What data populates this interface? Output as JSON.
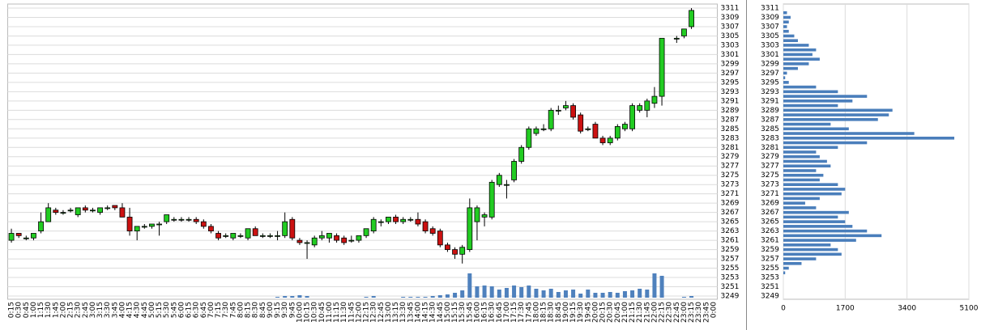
{
  "chart_data": [
    {
      "type": "candlestick",
      "categories": [
        "0:15",
        "0:30",
        "0:45",
        "1:00",
        "1:15",
        "1:30",
        "1:45",
        "2:00",
        "2:15",
        "2:30",
        "2:45",
        "3:00",
        "3:15",
        "3:30",
        "3:45",
        "4:00",
        "4:15",
        "4:30",
        "4:45",
        "5:00",
        "5:15",
        "5:30",
        "5:45",
        "6:00",
        "6:15",
        "6:30",
        "6:45",
        "7:00",
        "7:15",
        "7:30",
        "7:45",
        "8:00",
        "8:15",
        "8:30",
        "8:45",
        "9:00",
        "9:15",
        "9:30",
        "9:45",
        "10:00",
        "10:15",
        "10:30",
        "10:45",
        "11:00",
        "11:15",
        "11:30",
        "11:45",
        "12:00",
        "12:15",
        "12:30",
        "12:45",
        "13:00",
        "13:15",
        "13:30",
        "13:45",
        "14:00",
        "14:15",
        "14:30",
        "14:45",
        "15:00",
        "15:15",
        "15:30",
        "15:45",
        "16:00",
        "16:15",
        "16:30",
        "16:45",
        "17:00",
        "17:15",
        "17:30",
        "17:45",
        "18:00",
        "18:15",
        "18:30",
        "18:45",
        "19:00",
        "19:15",
        "19:30",
        "19:45",
        "20:00",
        "20:15",
        "20:30",
        "20:45",
        "21:00",
        "21:15",
        "21:30",
        "21:45",
        "22:00",
        "22:15",
        "22:30",
        "22:45",
        "23:00",
        "23:15",
        "23:30",
        "23:45",
        "0:00"
      ],
      "open": [
        3261,
        3262.5,
        3261.5,
        3261.5,
        3263,
        3265,
        3267.5,
        3267,
        3267.5,
        3266.5,
        3268,
        3267.5,
        3267,
        3268,
        3268.5,
        3268,
        3266,
        3263,
        3264,
        3264,
        3264.5,
        3265,
        3265.5,
        3265.5,
        3265.5,
        3265.5,
        3265,
        3264,
        3262.5,
        3262,
        3261.5,
        3262,
        3261.5,
        3263.5,
        3262,
        3262,
        3262,
        3262,
        3265.5,
        3261,
        3260.5,
        3260,
        3261.5,
        3261.5,
        3262,
        3261.5,
        3261,
        3261,
        3262,
        3263,
        3265,
        3265,
        3266,
        3265,
        3265.5,
        3265.5,
        3265,
        3263.5,
        3263,
        3260,
        3259,
        3258,
        3259,
        3265,
        3266,
        3266,
        3273,
        3273,
        3274,
        3278,
        3281,
        3284,
        3285,
        3285,
        3289,
        3289.5,
        3290,
        3288,
        3285,
        3286,
        3283,
        3282,
        3283,
        3285,
        3285,
        3289,
        3289,
        3290.5,
        3292,
        null,
        3304.5,
        3305,
        3307,
        null,
        null,
        null
      ],
      "high": [
        3263.5,
        3262.5,
        3262,
        3262.5,
        3267,
        3269,
        3268,
        3267.5,
        3268,
        3268,
        3268.5,
        3268,
        3268,
        3268.5,
        3268.5,
        3269,
        3268,
        3264,
        3264.5,
        3264.5,
        3265,
        3266.5,
        3266,
        3266,
        3266,
        3266,
        3265.5,
        3264.5,
        3263,
        3262.5,
        3262.5,
        3262.5,
        3263.5,
        3264,
        3262.5,
        3262.5,
        3263,
        3267,
        3266,
        3261.5,
        3261,
        3262,
        3263,
        3262.5,
        3262.5,
        3262,
        3262,
        3262,
        3263.5,
        3266,
        3265.5,
        3266,
        3266.5,
        3266,
        3266,
        3267,
        3265.5,
        3264,
        3263.5,
        3260.5,
        3259.5,
        3260,
        3270,
        3268.5,
        3267,
        3274,
        3275.5,
        3274,
        3278.5,
        3281.5,
        3285.5,
        3285.5,
        3286,
        3289.5,
        3290,
        3291,
        3290.5,
        3288.5,
        3285.5,
        3286.5,
        3283.5,
        3283.5,
        3286,
        3286.5,
        3290.5,
        3290.5,
        3291.5,
        3294,
        3304.5,
        null,
        3305,
        3306.5,
        3311,
        null,
        null,
        null
      ],
      "low": [
        3260.5,
        3261.5,
        3261,
        3261,
        3262.5,
        3265,
        3266.5,
        3266.5,
        3267,
        3266,
        3267,
        3267,
        3266.5,
        3267.5,
        3267.5,
        3266,
        3262,
        3261,
        3263.5,
        3263.5,
        3262,
        3264.5,
        3265,
        3265,
        3265,
        3264.5,
        3263.5,
        3262.5,
        3261,
        3261.5,
        3261,
        3261.5,
        3261,
        3262,
        3261.5,
        3261.5,
        3261,
        3261.5,
        3261,
        3260,
        3257,
        3259.5,
        3261,
        3260.5,
        3260.5,
        3260,
        3260.5,
        3260.5,
        3261.5,
        3262.5,
        3264,
        3264.5,
        3264.5,
        3264.5,
        3265,
        3264,
        3262.5,
        3262,
        3259.5,
        3258.5,
        3257,
        3256,
        3258.5,
        3261,
        3264,
        3265.5,
        3272.5,
        3270,
        3273.5,
        3277.5,
        3280.5,
        3283.5,
        3284.5,
        3284.5,
        3288,
        3289,
        3287,
        3284,
        3284.5,
        3283,
        3281.5,
        3281.5,
        3282.5,
        3284.5,
        3284.5,
        3288.5,
        3287.5,
        3289.5,
        3290,
        null,
        3303.5,
        3304.5,
        3306.5,
        null,
        null,
        null
      ],
      "close": [
        3262.5,
        3262,
        3261.5,
        3262.5,
        3265,
        3268,
        3267,
        3267,
        3267.5,
        3268,
        3267.5,
        3267.5,
        3268,
        3268,
        3268,
        3266,
        3263,
        3264,
        3264,
        3264.5,
        3264.5,
        3266.5,
        3265.5,
        3265.5,
        3265.5,
        3265,
        3264,
        3263,
        3261.5,
        3262,
        3262.5,
        3262,
        3263.5,
        3262,
        3262,
        3262,
        3262,
        3265,
        3261.5,
        3260.5,
        3260.5,
        3261.5,
        3262,
        3262.5,
        3261,
        3260.5,
        3261,
        3262,
        3263.5,
        3265.5,
        3265,
        3266,
        3265,
        3265.5,
        3265.5,
        3264.5,
        3263,
        3262.5,
        3260,
        3259,
        3258,
        3259.5,
        3268,
        3268,
        3266.5,
        3273.5,
        3275,
        3273,
        3278,
        3281,
        3285,
        3285,
        3285,
        3289,
        3289,
        3290,
        3287.5,
        3284.5,
        3285,
        3283,
        3282,
        3283,
        3285.5,
        3286,
        3290,
        3290,
        3291,
        3292,
        3304.5,
        null,
        3304.5,
        3306.5,
        3310.5,
        null,
        null,
        null
      ],
      "volume": [
        0,
        0,
        0,
        0,
        0,
        0,
        0,
        0,
        0,
        0,
        0,
        0,
        0,
        0,
        0,
        0,
        0,
        0,
        0,
        0,
        0,
        0,
        0,
        0,
        0,
        0,
        0,
        0,
        0,
        0,
        0,
        0,
        0,
        0,
        0,
        0,
        1,
        2,
        2,
        3,
        2,
        0,
        0,
        0,
        0,
        0,
        0,
        0,
        1,
        2,
        0,
        0,
        0,
        1,
        1,
        1,
        1,
        2,
        3,
        4,
        6,
        9,
        30,
        14,
        15,
        14,
        10,
        12,
        15,
        13,
        15,
        11,
        9,
        11,
        7,
        9,
        10,
        5,
        10,
        6,
        6,
        7,
        6,
        8,
        9,
        11,
        10,
        30,
        27,
        null,
        0,
        1,
        2,
        null,
        null,
        null
      ],
      "up_color": "#22cc22",
      "down_color": "#cc1111",
      "volume_color": "#4f81bd",
      "ylim": [
        3249,
        3311
      ],
      "yticks": [
        3249,
        3251,
        3253,
        3255,
        3257,
        3259,
        3261,
        3263,
        3265,
        3267,
        3269,
        3271,
        3273,
        3275,
        3277,
        3279,
        3281,
        3283,
        3285,
        3287,
        3289,
        3291,
        3293,
        3295,
        3297,
        3299,
        3301,
        3303,
        3305,
        3307,
        3309,
        3311
      ],
      "grid": true
    },
    {
      "type": "barh",
      "y": [
        3310,
        3309,
        3308,
        3307,
        3306,
        3305,
        3304,
        3303,
        3302,
        3301,
        3300,
        3299,
        3298,
        3297,
        3296,
        3295,
        3294,
        3293,
        3292,
        3291,
        3290,
        3289,
        3288,
        3287,
        3286,
        3285,
        3284,
        3283,
        3282,
        3281,
        3280,
        3279,
        3278,
        3277,
        3276,
        3275,
        3274,
        3273,
        3272,
        3271,
        3270,
        3269,
        3268,
        3267,
        3266,
        3265,
        3264,
        3263,
        3262,
        3261,
        3260,
        3259,
        3258,
        3257,
        3256,
        3255,
        3254
      ],
      "values": [
        100,
        200,
        150,
        100,
        150,
        300,
        400,
        700,
        900,
        800,
        1000,
        700,
        400,
        100,
        50,
        150,
        900,
        1500,
        2300,
        1900,
        1500,
        3000,
        2900,
        2600,
        1300,
        1800,
        3600,
        4700,
        2300,
        1500,
        900,
        1000,
        1200,
        1300,
        900,
        1100,
        1000,
        1500,
        1700,
        1600,
        1000,
        600,
        900,
        1800,
        1500,
        1700,
        1900,
        2300,
        2700,
        2000,
        1300,
        1500,
        1600,
        900,
        500,
        150,
        50
      ],
      "color": "#4a7ebb",
      "xlim": [
        0,
        5100
      ],
      "xticks": [
        0,
        1700,
        3400,
        5100
      ],
      "ylim": [
        3249,
        3311
      ],
      "yticks": [
        3249,
        3251,
        3253,
        3255,
        3257,
        3259,
        3261,
        3263,
        3265,
        3267,
        3269,
        3271,
        3273,
        3275,
        3277,
        3279,
        3281,
        3283,
        3285,
        3287,
        3289,
        3291,
        3293,
        3295,
        3297,
        3299,
        3301,
        3303,
        3305,
        3307,
        3309,
        3311
      ],
      "grid": true
    }
  ]
}
